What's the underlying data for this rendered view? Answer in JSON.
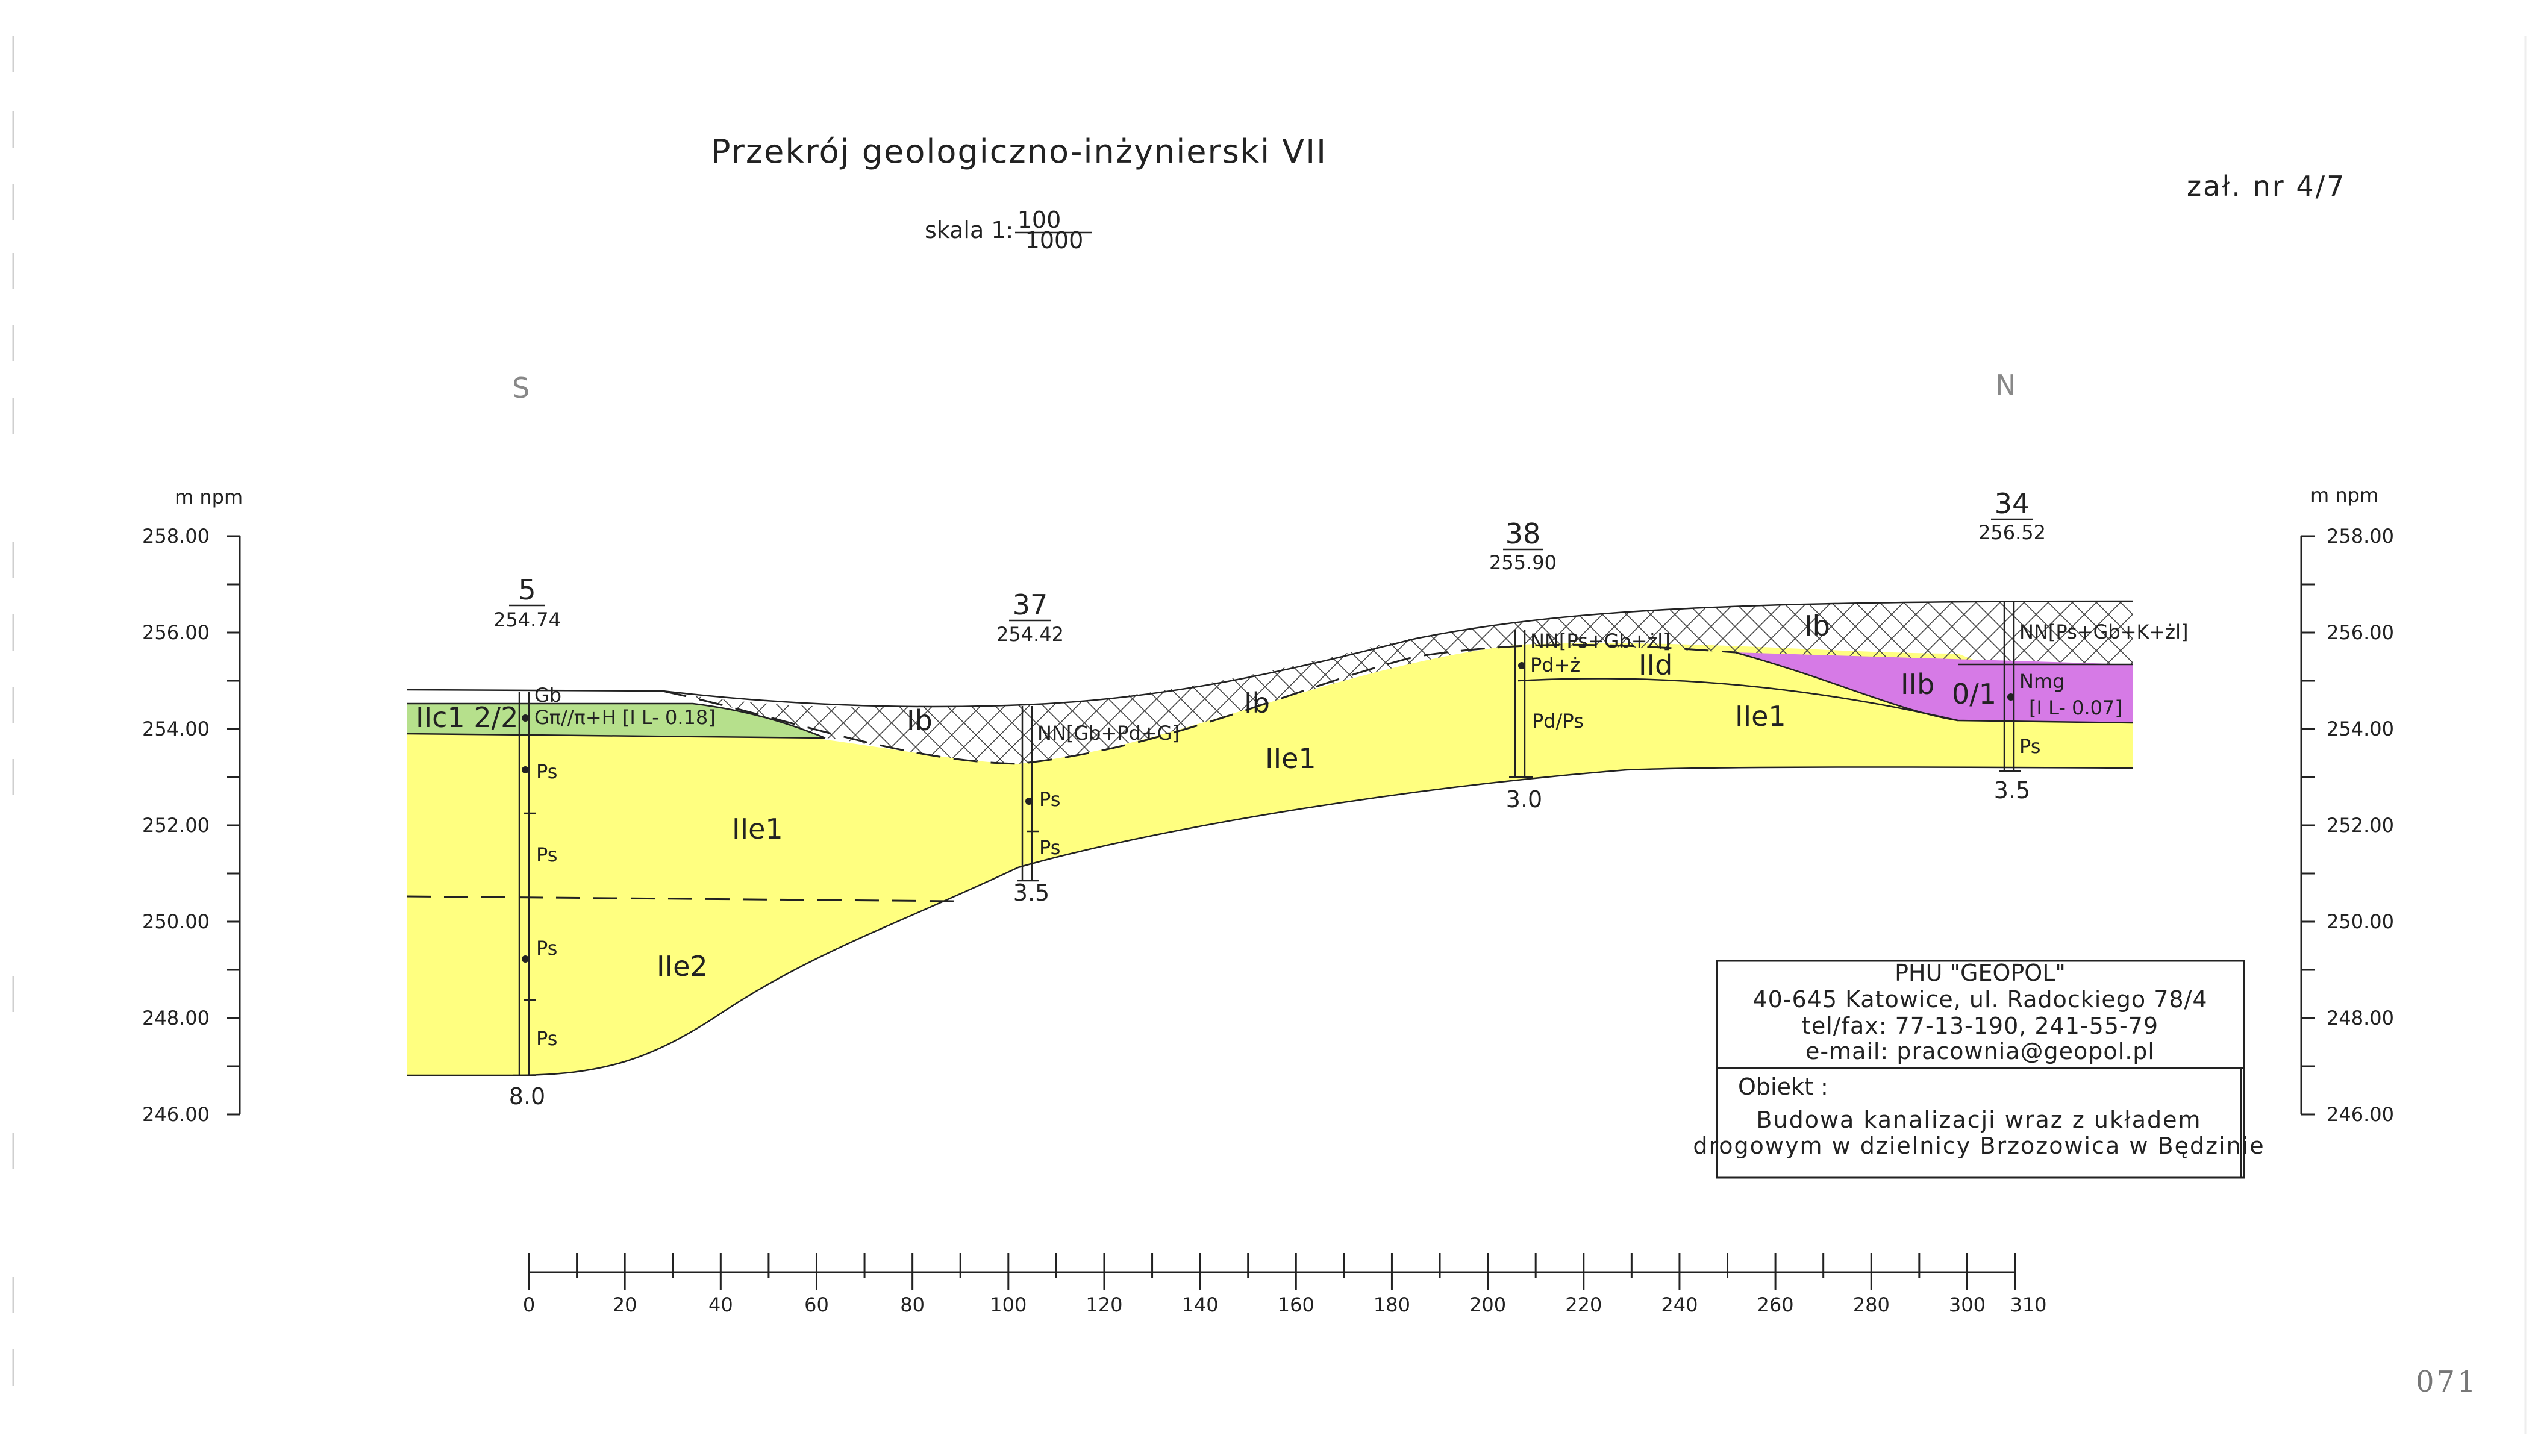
{
  "title": "Przekrój geologiczno-inżynierski VII",
  "scale": {
    "prefix": "skala 1:",
    "numerator": "100",
    "denominator": "1000"
  },
  "attachment": "zał. nr 4/7",
  "page_number": "071",
  "directions": {
    "left": "S",
    "right": "N"
  },
  "axis": {
    "unit_left": "m npm",
    "unit_right": "m npm",
    "elev_ticks_left": [
      "258.00",
      "256.00",
      "254.00",
      "252.00",
      "250.00",
      "248.00",
      "246.00"
    ],
    "elev_ticks_right": [
      "258.00",
      "256.00",
      "254.00",
      "252.00",
      "250.00",
      "248.00",
      "246.00"
    ],
    "distance_ticks": [
      "0",
      "20",
      "40",
      "60",
      "80",
      "100",
      "120",
      "140",
      "160",
      "180",
      "200",
      "220",
      "240",
      "260",
      "280",
      "300",
      "310"
    ]
  },
  "boreholes": [
    {
      "number": "5",
      "elevation": "254.74",
      "depth": "8.0",
      "samples": [
        "Ps",
        "Ps",
        "Ps",
        "Ps"
      ]
    },
    {
      "number": "37",
      "elevation": "254.42",
      "depth": "3.5",
      "note": "NN[Gb+Pd+G]",
      "samples": [
        "Ps",
        "Ps"
      ]
    },
    {
      "number": "38",
      "elevation": "255.90",
      "depth": "3.0",
      "note": "NN[Ps+Gb+żl]",
      "samples": [
        "Pd+ż",
        "Pd/Ps"
      ]
    },
    {
      "number": "34",
      "elevation": "256.52",
      "depth": "3.5",
      "note": "NN[Ps+Gb+K+żl]",
      "samples": [
        "Nmg",
        "[I L- 0.07]",
        "Ps"
      ]
    }
  ],
  "borehole5_labels": {
    "top": "Gb",
    "clay": "Gπ//π+H [I L- 0.18]"
  },
  "layers": {
    "IIc1": "IIc1 2/2",
    "Ib": "Ib",
    "IIe1": "IIe1",
    "IIe2": "IIe2",
    "IId": "IId",
    "IIb": "IIb",
    "IIb_state": "0/1"
  },
  "colors": {
    "sand": "#ffff80",
    "clay": "#b6e08c",
    "magenta": "#d67ae6",
    "line": "#222222"
  },
  "company": {
    "name": "PHU \"GEOPOL\"",
    "address": "40-645 Katowice, ul. Radockiego 78/4",
    "phone": "tel/fax: 77-13-190, 241-55-79",
    "email": "e-mail: pracownia@geopol.pl",
    "object_label": "Obiekt :",
    "object_line1": "Budowa kanalizacji wraz z układem",
    "object_line2": "drogowym w dzielnicy Brzozowica w Będzinie"
  }
}
